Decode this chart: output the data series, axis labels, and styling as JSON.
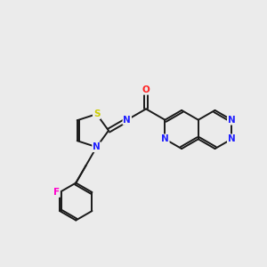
{
  "background_color": "#ebebeb",
  "bond_color": "#1a1a1a",
  "atom_colors": {
    "N": "#2020ff",
    "O": "#ff2020",
    "S": "#cccc00",
    "F": "#ff00cc",
    "C": "#1a1a1a"
  },
  "figsize": [
    3.0,
    3.0
  ],
  "dpi": 100,
  "lw": 1.4,
  "fs": 7.5
}
